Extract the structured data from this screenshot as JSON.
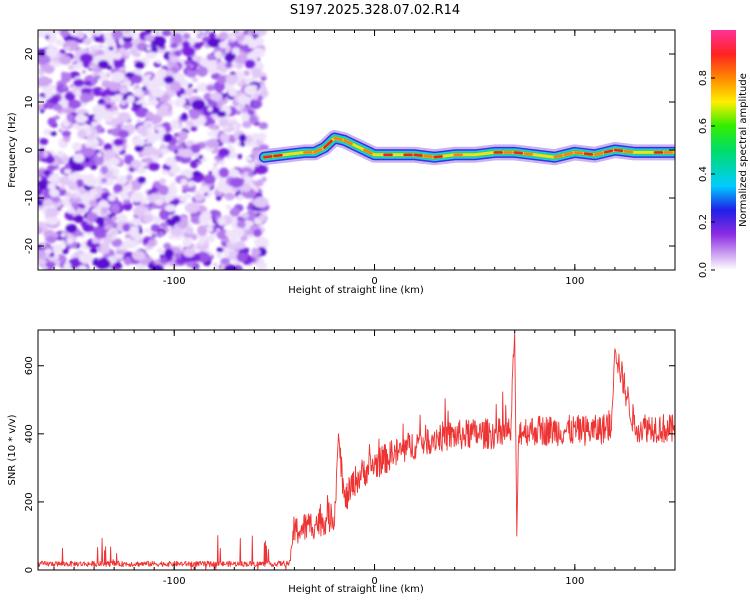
{
  "title": "S197.2025.328.07.02.R14",
  "chart_data": [
    {
      "type": "heatmap",
      "name": "spectrogram",
      "xlabel": "Height of straight line (km)",
      "ylabel": "Frequency (Hz)",
      "xlim": [
        -168,
        150
      ],
      "ylim": [
        -25,
        25
      ],
      "xticks": [
        -100,
        0,
        100
      ],
      "yticks": [
        -20,
        -10,
        0,
        10,
        20
      ],
      "noise_region_x": [
        -168,
        -55
      ],
      "signal_track": {
        "x": [
          -55,
          -45,
          -35,
          -30,
          -25,
          -20,
          -15,
          -10,
          -5,
          0,
          10,
          20,
          30,
          40,
          50,
          60,
          70,
          80,
          90,
          100,
          110,
          120,
          130,
          140,
          150
        ],
        "freq": [
          -1.5,
          -1,
          -0.5,
          -0.5,
          0.5,
          2.5,
          2,
          1,
          0,
          -1,
          -1,
          -1,
          -1.5,
          -1,
          -1,
          -0.5,
          -0.5,
          -1,
          -1.5,
          -0.5,
          -1,
          0,
          -0.5,
          -0.5,
          -0.5
        ]
      },
      "colorbar": {
        "label": "Normalized spectral amplitude",
        "range": [
          0,
          1
        ],
        "ticks": [
          0.0,
          0.2,
          0.4,
          0.6,
          0.8
        ]
      }
    },
    {
      "type": "line",
      "name": "snr",
      "xlabel": "Height of straight line (km)",
      "ylabel": "SNR (10 * v/v)",
      "xlim": [
        -168,
        150
      ],
      "ylim": [
        0,
        705
      ],
      "xticks": [
        -100,
        0,
        100
      ],
      "yticks": [
        0,
        200,
        400,
        600
      ],
      "series": [
        {
          "name": "SNR",
          "color": "#ee3333",
          "x": [
            -168,
            -100,
            -50,
            -42,
            -41,
            -35,
            -28,
            -20,
            -18,
            -15,
            -10,
            -5,
            0,
            10,
            20,
            30,
            40,
            50,
            60,
            68,
            70,
            71,
            72,
            80,
            90,
            100,
            110,
            118,
            120,
            130,
            140,
            150
          ],
          "values": [
            18,
            18,
            18,
            20,
            110,
            125,
            140,
            160,
            400,
            200,
            260,
            290,
            310,
            340,
            370,
            390,
            395,
            400,
            400,
            405,
            700,
            100,
            410,
            410,
            410,
            410,
            410,
            420,
            650,
            420,
            420,
            410
          ]
        }
      ]
    }
  ]
}
